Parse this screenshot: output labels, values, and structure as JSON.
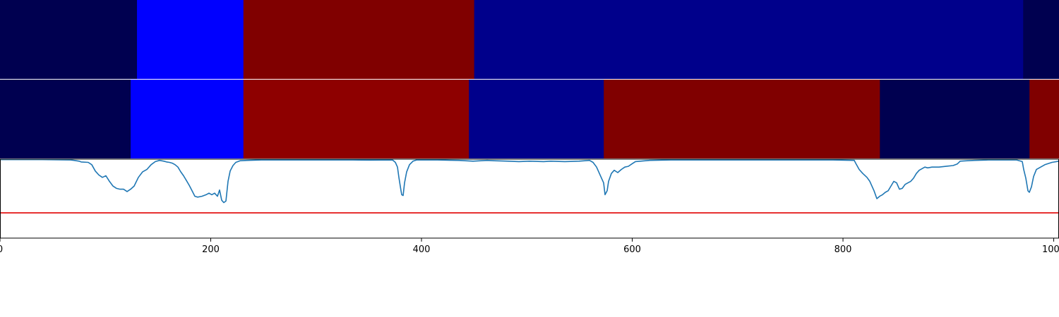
{
  "chart_data": {
    "type": "heatmap",
    "title": "",
    "xlabel": "",
    "ylabel": "",
    "xlim": [
      0,
      1005
    ],
    "x_ticks": [
      0,
      200,
      400,
      600,
      800,
      1000
    ],
    "x_tick_labels": [
      "0",
      "200",
      "400",
      "600",
      "800",
      "1000"
    ],
    "segment_rows": [
      {
        "segments": [
          {
            "start": 0,
            "end": 130,
            "color": "#000050"
          },
          {
            "start": 130,
            "end": 231,
            "color": "#0000ff"
          },
          {
            "start": 231,
            "end": 450,
            "color": "#800000"
          },
          {
            "start": 450,
            "end": 971,
            "color": "#00008b"
          },
          {
            "start": 971,
            "end": 1005,
            "color": "#000050"
          }
        ]
      },
      {
        "segments": [
          {
            "start": 0,
            "end": 124,
            "color": "#000050"
          },
          {
            "start": 124,
            "end": 231,
            "color": "#0000ff"
          },
          {
            "start": 231,
            "end": 445,
            "color": "#8e0000"
          },
          {
            "start": 445,
            "end": 573,
            "color": "#00008b"
          },
          {
            "start": 573,
            "end": 835,
            "color": "#800000"
          },
          {
            "start": 835,
            "end": 977,
            "color": "#000050"
          },
          {
            "start": 977,
            "end": 1005,
            "color": "#800000"
          }
        ]
      }
    ],
    "line_panel": {
      "ylim": [
        0,
        1
      ],
      "threshold": {
        "y": 0.32,
        "color": "#e00000"
      },
      "series": [
        {
          "color": "#1f77b4",
          "points": [
            [
              0,
              0.995
            ],
            [
              60,
              0.995
            ],
            [
              100,
              0.99
            ],
            [
              105,
              0.985
            ],
            [
              112,
              0.975
            ],
            [
              115,
              0.965
            ],
            [
              125,
              0.96
            ],
            [
              130,
              0.93
            ],
            [
              135,
              0.85
            ],
            [
              140,
              0.8
            ],
            [
              145,
              0.77
            ],
            [
              150,
              0.79
            ],
            [
              155,
              0.72
            ],
            [
              160,
              0.66
            ],
            [
              165,
              0.63
            ],
            [
              170,
              0.62
            ],
            [
              175,
              0.62
            ],
            [
              180,
              0.59
            ],
            [
              185,
              0.62
            ],
            [
              190,
              0.66
            ],
            [
              196,
              0.77
            ],
            [
              202,
              0.84
            ],
            [
              208,
              0.87
            ],
            [
              214,
              0.93
            ],
            [
              220,
              0.97
            ],
            [
              226,
              0.985
            ],
            [
              232,
              0.975
            ],
            [
              236,
              0.965
            ],
            [
              240,
              0.96
            ],
            [
              244,
              0.95
            ],
            [
              248,
              0.93
            ],
            [
              252,
              0.9
            ],
            [
              256,
              0.84
            ],
            [
              260,
              0.79
            ],
            [
              264,
              0.73
            ],
            [
              268,
              0.67
            ],
            [
              272,
              0.6
            ],
            [
              276,
              0.53
            ],
            [
              280,
              0.52
            ],
            [
              286,
              0.53
            ],
            [
              292,
              0.55
            ],
            [
              296,
              0.57
            ],
            [
              300,
              0.55
            ],
            [
              304,
              0.57
            ],
            [
              308,
              0.53
            ],
            [
              311,
              0.61
            ],
            [
              314,
              0.48
            ],
            [
              317,
              0.45
            ],
            [
              320,
              0.47
            ],
            [
              323,
              0.72
            ],
            [
              326,
              0.85
            ],
            [
              330,
              0.92
            ],
            [
              334,
              0.96
            ],
            [
              340,
              0.98
            ],
            [
              350,
              0.985
            ],
            [
              370,
              0.99
            ],
            [
              400,
              0.99
            ],
            [
              440,
              0.99
            ],
            [
              500,
              0.99
            ],
            [
              525,
              0.988
            ],
            [
              556,
              0.99
            ],
            [
              560,
              0.96
            ],
            [
              563,
              0.9
            ],
            [
              565,
              0.77
            ],
            [
              568,
              0.6
            ],
            [
              569,
              0.55
            ],
            [
              571,
              0.54
            ],
            [
              573,
              0.7
            ],
            [
              576,
              0.84
            ],
            [
              580,
              0.93
            ],
            [
              585,
              0.975
            ],
            [
              590,
              0.99
            ],
            [
              620,
              0.99
            ],
            [
              650,
              0.985
            ],
            [
              670,
              0.975
            ],
            [
              690,
              0.985
            ],
            [
              700,
              0.98
            ],
            [
              720,
              0.975
            ],
            [
              735,
              0.97
            ],
            [
              750,
              0.975
            ],
            [
              770,
              0.97
            ],
            [
              780,
              0.975
            ],
            [
              800,
              0.97
            ],
            [
              820,
              0.975
            ],
            [
              835,
              0.985
            ],
            [
              840,
              0.96
            ],
            [
              845,
              0.9
            ],
            [
              850,
              0.8
            ],
            [
              855,
              0.7
            ],
            [
              857,
              0.55
            ],
            [
              860,
              0.6
            ],
            [
              862,
              0.72
            ],
            [
              866,
              0.82
            ],
            [
              870,
              0.86
            ],
            [
              875,
              0.83
            ],
            [
              880,
              0.87
            ],
            [
              885,
              0.9
            ],
            [
              890,
              0.91
            ],
            [
              895,
              0.94
            ],
            [
              900,
              0.97
            ],
            [
              920,
              0.985
            ],
            [
              950,
              0.99
            ],
            [
              990,
              0.99
            ],
            [
              1050,
              0.99
            ],
            [
              1100,
              0.99
            ],
            [
              1180,
              0.99
            ],
            [
              1210,
              0.985
            ],
            [
              1212,
              0.95
            ],
            [
              1217,
              0.87
            ],
            [
              1222,
              0.82
            ],
            [
              1228,
              0.77
            ],
            [
              1232,
              0.72
            ],
            [
              1238,
              0.6
            ],
            [
              1242,
              0.5
            ],
            [
              1246,
              0.53
            ],
            [
              1250,
              0.55
            ],
            [
              1254,
              0.58
            ],
            [
              1258,
              0.6
            ],
            [
              1262,
              0.66
            ],
            [
              1266,
              0.72
            ],
            [
              1270,
              0.7
            ],
            [
              1274,
              0.62
            ],
            [
              1278,
              0.63
            ],
            [
              1282,
              0.68
            ],
            [
              1286,
              0.7
            ],
            [
              1290,
              0.72
            ],
            [
              1294,
              0.76
            ],
            [
              1298,
              0.82
            ],
            [
              1302,
              0.86
            ],
            [
              1306,
              0.88
            ],
            [
              1310,
              0.9
            ],
            [
              1314,
              0.89
            ],
            [
              1320,
              0.9
            ],
            [
              1330,
              0.9
            ],
            [
              1340,
              0.91
            ],
            [
              1350,
              0.92
            ],
            [
              1356,
              0.94
            ],
            [
              1360,
              0.975
            ],
            [
              1370,
              0.98
            ],
            [
              1380,
              0.985
            ],
            [
              1400,
              0.99
            ],
            [
              1440,
              0.99
            ],
            [
              1448,
              0.97
            ],
            [
              1450,
              0.87
            ],
            [
              1453,
              0.76
            ],
            [
              1456,
              0.6
            ],
            [
              1458,
              0.58
            ],
            [
              1461,
              0.65
            ],
            [
              1464,
              0.78
            ],
            [
              1468,
              0.87
            ],
            [
              1474,
              0.9
            ],
            [
              1480,
              0.93
            ],
            [
              1490,
              0.96
            ],
            [
              1500,
              0.975
            ]
          ]
        }
      ]
    }
  }
}
